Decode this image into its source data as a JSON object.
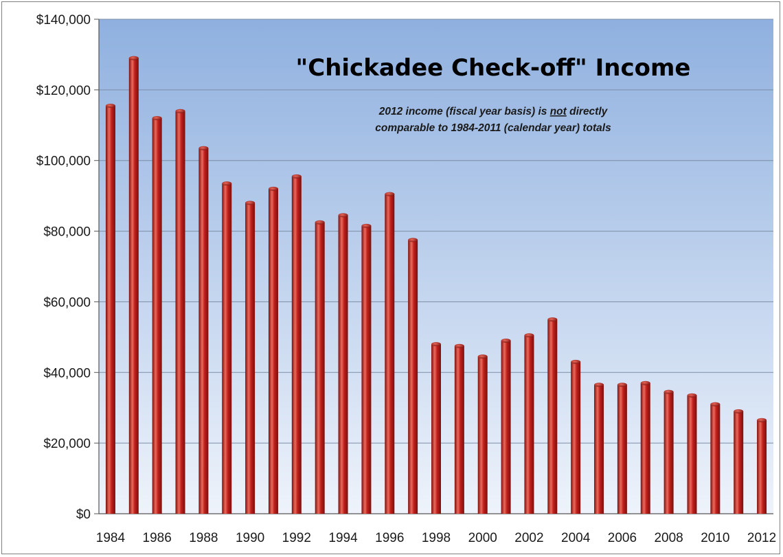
{
  "chart_data": {
    "type": "bar",
    "title": "\"Chickadee Check-off\" Income",
    "note": {
      "line1_before": "2012  income (fiscal year basis) is ",
      "line1_underlined": "not",
      "line1_after": " directly",
      "line2": "comparable  to 1984-2011 (calendar year) totals"
    },
    "xlabel": "",
    "ylabel": "",
    "ylim": [
      0,
      140000
    ],
    "y_ticks": [
      "$0",
      "$20,000",
      "$40,000",
      "$60,000",
      "$80,000",
      "$100,000",
      "$120,000",
      "$140,000"
    ],
    "x_tick_labels": [
      "1984",
      "1986",
      "1988",
      "1990",
      "1992",
      "1994",
      "1996",
      "1998",
      "2000",
      "2002",
      "2004",
      "2006",
      "2008",
      "2010",
      "2012"
    ],
    "categories": [
      "1984",
      "1985",
      "1986",
      "1987",
      "1988",
      "1989",
      "1990",
      "1991",
      "1992",
      "1993",
      "1994",
      "1995",
      "1996",
      "1997",
      "1998",
      "1999",
      "2000",
      "2001",
      "2002",
      "2003",
      "2004",
      "2005",
      "2006",
      "2007",
      "2008",
      "2009",
      "2010",
      "2011",
      "2012"
    ],
    "values": [
      115500,
      129000,
      112000,
      114000,
      103500,
      93500,
      88000,
      92000,
      95500,
      82500,
      84500,
      81500,
      90500,
      77500,
      48000,
      47500,
      44500,
      49000,
      50500,
      55000,
      43000,
      36500,
      36500,
      37000,
      34500,
      33500,
      31000,
      29000,
      26500
    ],
    "grid": true,
    "legend": "none",
    "colors": {
      "bar": "#c0201c",
      "bar_dark": "#7a0f0d",
      "bar_light": "#ec6a5c",
      "plot_top": "#8fb0df",
      "plot_bottom": "#eef3fb",
      "grid": "#7d8da6"
    }
  }
}
